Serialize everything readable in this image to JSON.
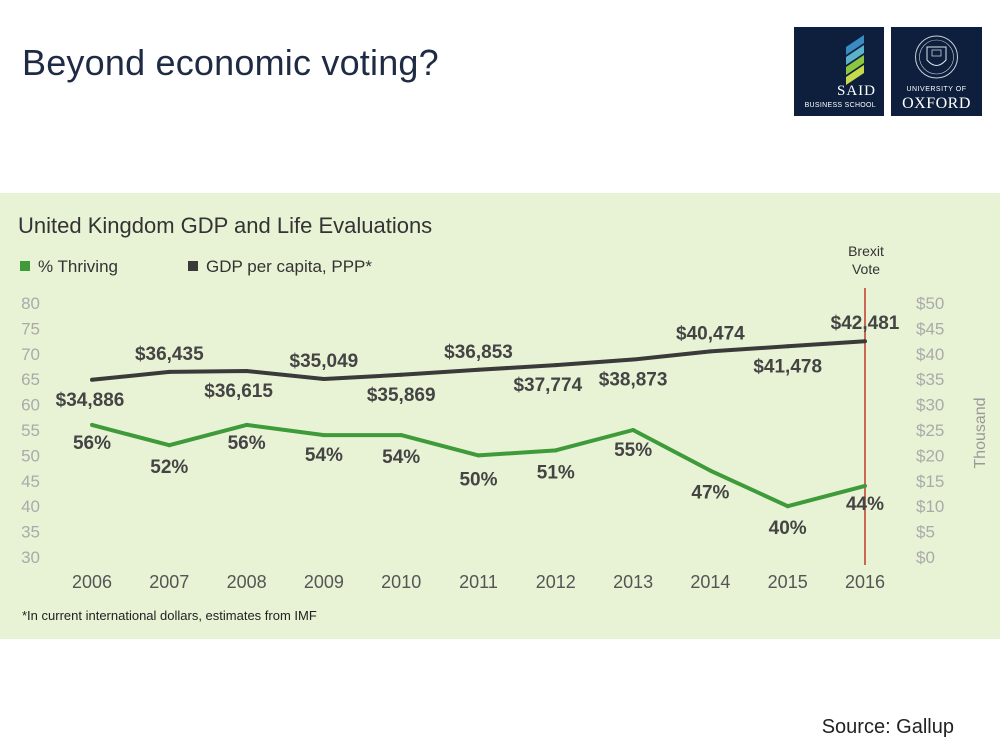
{
  "slide": {
    "title": "Beyond economic voting?",
    "source": "Source: Gallup"
  },
  "logos": {
    "said": {
      "name": "SAID",
      "sub": "BUSINESS SCHOOL"
    },
    "oxford": {
      "top": "UNIVERSITY OF",
      "name": "OXFORD"
    }
  },
  "chart_data": {
    "type": "line",
    "title": "United Kingdom GDP and Life Evaluations",
    "categories": [
      "2006",
      "2007",
      "2008",
      "2009",
      "2010",
      "2011",
      "2012",
      "2013",
      "2014",
      "2015",
      "2016"
    ],
    "series": [
      {
        "name": "% Thriving",
        "axis": "left",
        "color": "#3f9a3a",
        "values": [
          56,
          52,
          56,
          54,
          54,
          50,
          51,
          55,
          47,
          40,
          44
        ],
        "labels": [
          "56%",
          "52%",
          "56%",
          "54%",
          "54%",
          "50%",
          "51%",
          "55%",
          "47%",
          "40%",
          "44%"
        ]
      },
      {
        "name": "GDP per capita, PPP*",
        "axis": "right",
        "color": "#3a3a3a",
        "values": [
          34.886,
          36.435,
          36.615,
          35.049,
          35.869,
          36.853,
          37.774,
          38.873,
          40.474,
          41.478,
          42.481
        ],
        "labels": [
          "$34,886",
          "$36,435",
          "$36,615",
          "$35,049",
          "$35,869",
          "$36,853",
          "$37,774",
          "$38,873",
          "$40,474",
          "$41,478",
          "$42,481"
        ]
      }
    ],
    "y_left": {
      "min": 30,
      "max": 80,
      "ticks": [
        "30",
        "35",
        "40",
        "45",
        "50",
        "55",
        "60",
        "65",
        "70",
        "75",
        "80"
      ]
    },
    "y_right": {
      "min": 0,
      "max": 50,
      "ticks": [
        "$0",
        "$5",
        "$10",
        "$15",
        "$20",
        "$25",
        "$30",
        "$35",
        "$40",
        "$45",
        "$50"
      ],
      "label": "Thousand"
    },
    "grid": false,
    "legend_placement": "top-left",
    "annotation": {
      "label_line1": "Brexit",
      "label_line2": "Vote",
      "at_category": "2016",
      "color": "#c0392b"
    },
    "footnote": "*In current international dollars, estimates from IMF"
  }
}
